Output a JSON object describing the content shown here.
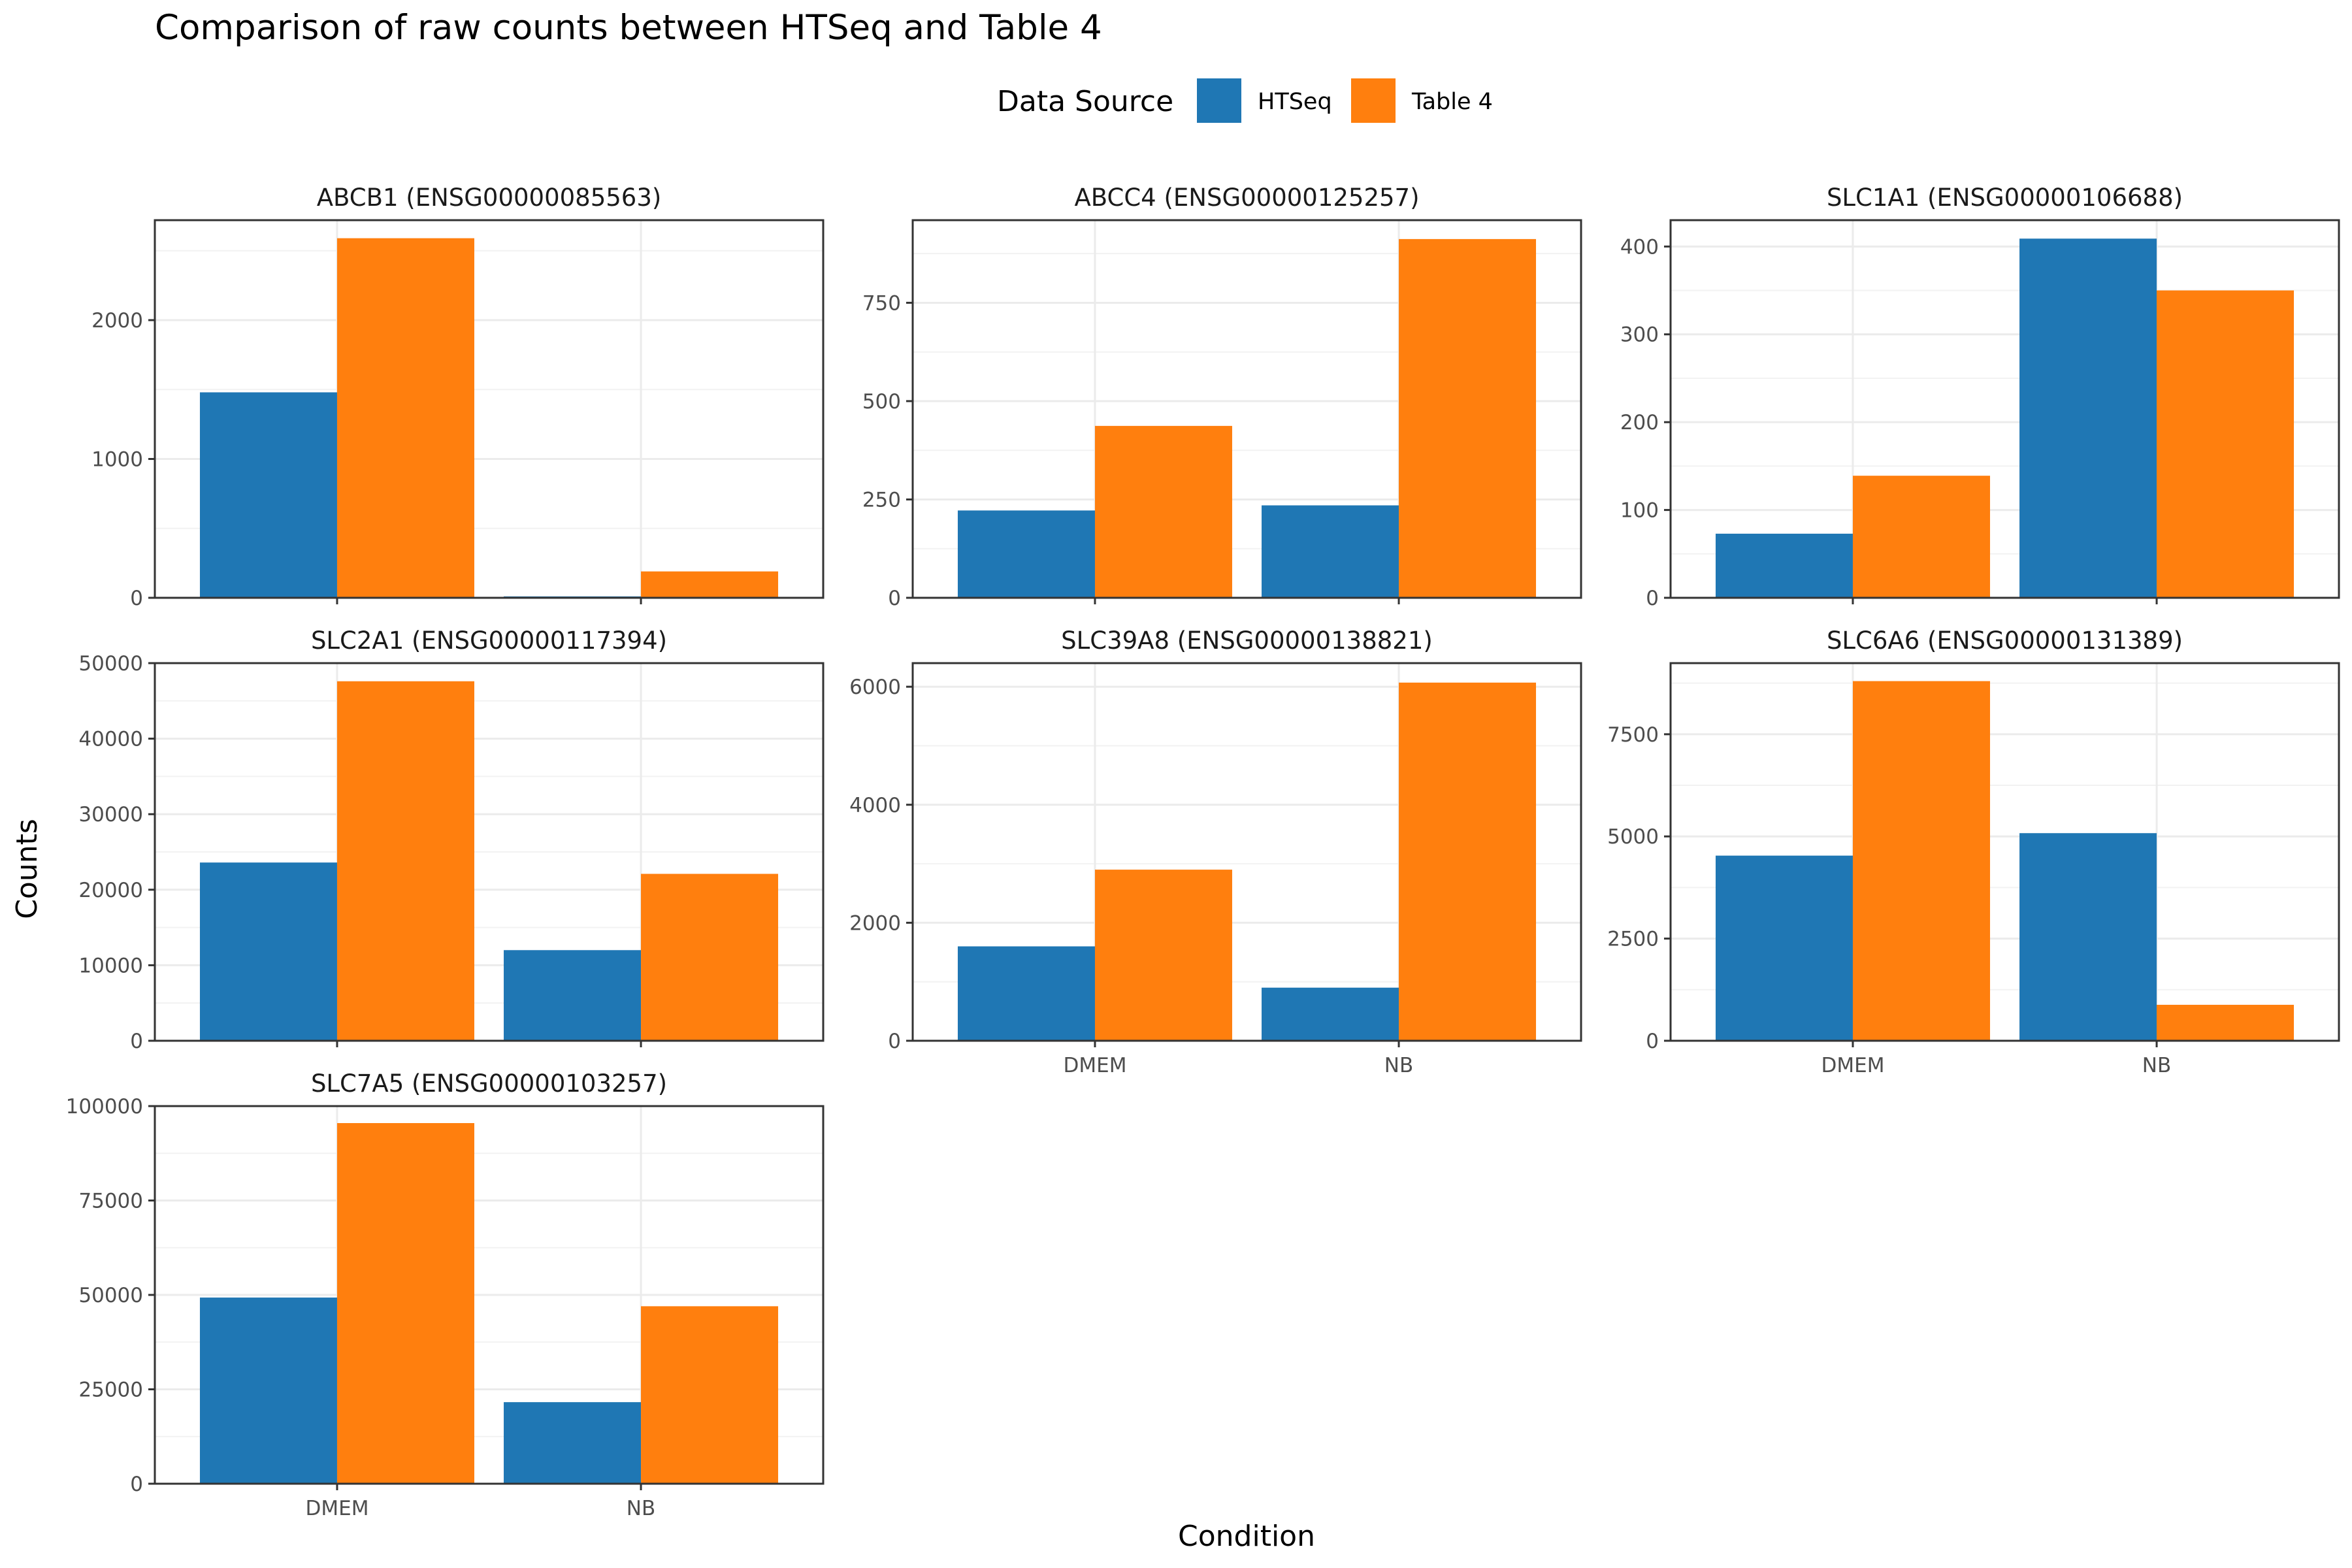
{
  "chart_data": {
    "type": "bar",
    "title": "Comparison of raw counts between HTSeq and Table 4",
    "xlabel": "Condition",
    "ylabel": "Counts",
    "legend": {
      "title": "Data Source",
      "placement": "top",
      "entries": [
        {
          "name": "HTSeq",
          "color": "#1f77b4"
        },
        {
          "name": "Table 4",
          "color": "#ff7f0e"
        }
      ]
    },
    "grid": true,
    "categories": [
      "DMEM",
      "NB"
    ],
    "facets": [
      {
        "label": "ABCB1 (ENSG00000085563)",
        "ylim": [
          0,
          2720
        ],
        "yticks": [
          0,
          1000,
          2000
        ],
        "yticklabels": [
          "0",
          "1000",
          "2000"
        ],
        "htseq": [
          1480,
          10
        ],
        "table4": [
          2590,
          190
        ]
      },
      {
        "label": "ABCC4 (ENSG00000125257)",
        "ylim": [
          0,
          960
        ],
        "yticks": [
          0,
          250,
          500,
          750
        ],
        "yticklabels": [
          "0",
          "250",
          "500",
          "750"
        ],
        "htseq": [
          222,
          235
        ],
        "table4": [
          437,
          912
        ]
      },
      {
        "label": "SLC1A1 (ENSG00000106688)",
        "ylim": [
          0,
          430
        ],
        "yticks": [
          0,
          100,
          200,
          300,
          400
        ],
        "yticklabels": [
          "0",
          "100",
          "200",
          "300",
          "400"
        ],
        "htseq": [
          73,
          409
        ],
        "table4": [
          139,
          350
        ]
      },
      {
        "label": "SLC2A1 (ENSG00000117394)",
        "ylim": [
          0,
          50000
        ],
        "yticks": [
          0,
          10000,
          20000,
          30000,
          40000,
          50000
        ],
        "yticklabels": [
          "0",
          "10000",
          "20000",
          "30000",
          "40000",
          "50000"
        ],
        "htseq": [
          23600,
          12000
        ],
        "table4": [
          47600,
          22100
        ]
      },
      {
        "label": "SLC39A8 (ENSG00000138821)",
        "ylim": [
          0,
          6400
        ],
        "yticks": [
          0,
          2000,
          4000,
          6000
        ],
        "yticklabels": [
          "0",
          "2000",
          "4000",
          "6000"
        ],
        "htseq": [
          1600,
          900
        ],
        "table4": [
          2900,
          6070
        ]
      },
      {
        "label": "SLC6A6 (ENSG00000131389)",
        "ylim": [
          0,
          9240
        ],
        "yticks": [
          0,
          2500,
          5000,
          7500
        ],
        "yticklabels": [
          "0",
          "2500",
          "5000",
          "7500"
        ],
        "htseq": [
          4530,
          5080
        ],
        "table4": [
          8800,
          880
        ]
      },
      {
        "label": "SLC7A5 (ENSG00000103257)",
        "ylim": [
          0,
          100000
        ],
        "yticks": [
          0,
          25000,
          50000,
          75000,
          100000
        ],
        "yticklabels": [
          "0",
          "25000",
          "50000",
          "75000",
          "100000"
        ],
        "htseq": [
          49300,
          21600
        ],
        "table4": [
          95500,
          47000
        ]
      }
    ]
  }
}
